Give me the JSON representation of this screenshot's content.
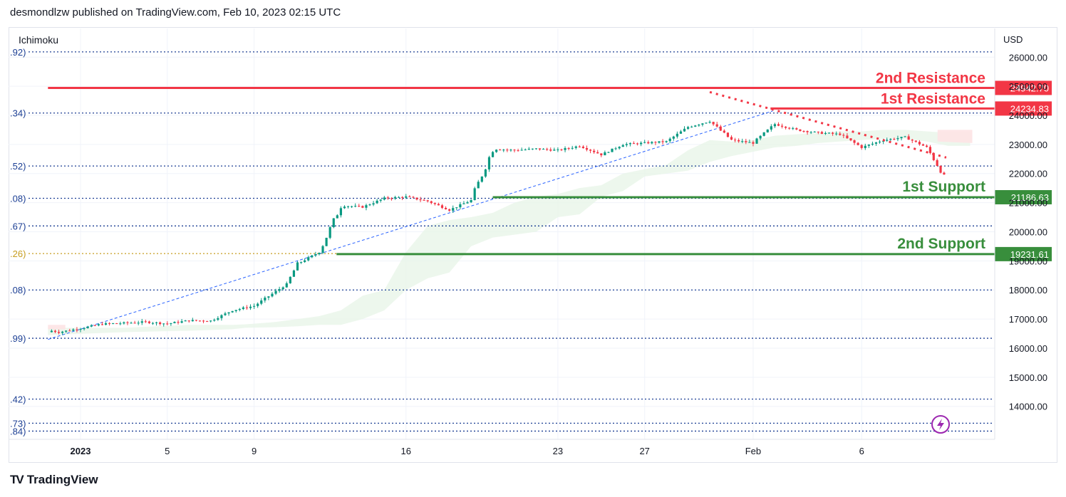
{
  "header": {
    "published_line": "desmondlzw published on TradingView.com, Feb 10, 2023 02:15 UTC"
  },
  "footer": {
    "brand": "TradingView",
    "logo_mark": "TV"
  },
  "chart_data": {
    "type": "candlestick",
    "indicator_label": "Ichimoku",
    "currency": "USD",
    "y_ticks": [
      26000,
      25000,
      24000,
      23000,
      22000,
      21000,
      20000,
      19000,
      18000,
      17000,
      16000,
      15000,
      14000
    ],
    "ylim": [
      12900,
      26800
    ],
    "grid": true,
    "x_ticks": [
      {
        "label": "2023",
        "day": 1,
        "bold": true
      },
      {
        "label": "5",
        "day": 5
      },
      {
        "label": "9",
        "day": 9
      },
      {
        "label": "16",
        "day": 16
      },
      {
        "label": "23",
        "day": 23
      },
      {
        "label": "27",
        "day": 27
      },
      {
        "label": "Feb",
        "day": 32
      },
      {
        "label": "6",
        "day": 37
      }
    ],
    "fib_levels": [
      {
        "label": ".92)",
        "value": 26180,
        "color": "#1c3f94"
      },
      {
        "label": ".34)",
        "value": 24080,
        "color": "#1c3f94"
      },
      {
        "label": ".52)",
        "value": 22260,
        "color": "#1c3f94"
      },
      {
        "label": ".08)",
        "value": 21150,
        "color": "#1c3f94"
      },
      {
        "label": ".67)",
        "value": 20200,
        "color": "#1c3f94"
      },
      {
        "label": ".26)",
        "value": 19250,
        "color": "#c79d1f"
      },
      {
        "label": ".08)",
        "value": 18000,
        "color": "#1c3f94"
      },
      {
        "label": ".99)",
        "value": 16340,
        "color": "#1c3f94"
      },
      {
        "label": ".42)",
        "value": 14250,
        "color": "#1c3f94"
      },
      {
        "label": ".73)",
        "value": 13420,
        "color": "#1c3f94"
      },
      {
        "label": ".84)",
        "value": 13150,
        "color": "#1c3f94"
      }
    ],
    "resistance_lines": [
      {
        "name": "2nd Resistance",
        "value": 24942.7,
        "label": "24942.70",
        "color": "#f23645",
        "from_day": -0.5
      },
      {
        "name": "1st Resistance",
        "value": 24234.83,
        "label": "24234.83",
        "color": "#f23645",
        "from_day": 32.8
      }
    ],
    "support_lines": [
      {
        "name": "1st Support",
        "value": 21186.63,
        "label": "21186.63",
        "color": "#388e3c",
        "from_day": 20.0
      },
      {
        "name": "2nd Support",
        "value": 19231.61,
        "label": "19231.61",
        "color": "#388e3c",
        "from_day": 12.8
      }
    ],
    "trendline": {
      "color": "#f23645",
      "points": [
        [
          30.0,
          24800
        ],
        [
          40.9,
          22550
        ]
      ]
    },
    "fib_trend": {
      "color": "#2962ff",
      "points": [
        [
          -0.5,
          16300
        ],
        [
          32.9,
          24150
        ]
      ]
    },
    "up_color": "#089981",
    "down_color": "#f23645",
    "candles_daily": [
      {
        "day": -0.5,
        "o": 16550,
        "c": 16620
      },
      {
        "day": 0.0,
        "o": 16620,
        "c": 16550
      },
      {
        "day": 1.0,
        "o": 16550,
        "c": 16680
      },
      {
        "day": 2.0,
        "o": 16680,
        "c": 16830
      },
      {
        "day": 3.0,
        "o": 16830,
        "c": 16860
      },
      {
        "day": 4.0,
        "o": 16860,
        "c": 16900
      },
      {
        "day": 5.0,
        "o": 16900,
        "c": 16840
      },
      {
        "day": 6.0,
        "o": 16840,
        "c": 16950
      },
      {
        "day": 7.0,
        "o": 16950,
        "c": 16940
      },
      {
        "day": 8.0,
        "o": 16940,
        "c": 17300
      },
      {
        "day": 9.0,
        "o": 17300,
        "c": 17450
      },
      {
        "day": 10.0,
        "o": 17450,
        "c": 17950
      },
      {
        "day": 10.5,
        "o": 17950,
        "c": 18200
      },
      {
        "day": 11.0,
        "o": 18200,
        "c": 18900
      },
      {
        "day": 12.0,
        "o": 18900,
        "c": 19300
      },
      {
        "day": 13.0,
        "o": 19300,
        "c": 20900
      },
      {
        "day": 14.0,
        "o": 20900,
        "c": 20850
      },
      {
        "day": 15.0,
        "o": 20850,
        "c": 21150
      },
      {
        "day": 16.0,
        "o": 21150,
        "c": 21200
      },
      {
        "day": 17.0,
        "o": 21200,
        "c": 21050
      },
      {
        "day": 18.0,
        "o": 21050,
        "c": 20750
      },
      {
        "day": 19.0,
        "o": 20750,
        "c": 21080
      },
      {
        "day": 20.0,
        "o": 21080,
        "c": 22850
      },
      {
        "day": 21.0,
        "o": 22850,
        "c": 22800
      },
      {
        "day": 22.0,
        "o": 22800,
        "c": 22850
      },
      {
        "day": 23.0,
        "o": 22850,
        "c": 22800
      },
      {
        "day": 24.0,
        "o": 22800,
        "c": 22950
      },
      {
        "day": 25.0,
        "o": 22950,
        "c": 22650
      },
      {
        "day": 26.0,
        "o": 22650,
        "c": 23000
      },
      {
        "day": 27.0,
        "o": 23000,
        "c": 23050
      },
      {
        "day": 28.0,
        "o": 23050,
        "c": 23100
      },
      {
        "day": 29.0,
        "o": 23100,
        "c": 23600
      },
      {
        "day": 30.0,
        "o": 23600,
        "c": 23800
      },
      {
        "day": 31.0,
        "o": 23800,
        "c": 23150
      },
      {
        "day": 32.0,
        "o": 23150,
        "c": 23050
      },
      {
        "day": 33.0,
        "o": 23050,
        "c": 23700
      },
      {
        "day": 34.0,
        "o": 23700,
        "c": 23500
      },
      {
        "day": 35.0,
        "o": 23500,
        "c": 23400
      },
      {
        "day": 36.0,
        "o": 23400,
        "c": 23350
      },
      {
        "day": 37.0,
        "o": 23350,
        "c": 22900
      },
      {
        "day": 38.0,
        "o": 22900,
        "c": 23150
      },
      {
        "day": 39.0,
        "o": 23150,
        "c": 23250
      },
      {
        "day": 40.0,
        "o": 23250,
        "c": 22900
      },
      {
        "day": 40.8,
        "o": 22900,
        "c": 21900
      }
    ],
    "cloud_upper": [
      [
        -0.5,
        16700
      ],
      [
        3,
        16700
      ],
      [
        6,
        16800
      ],
      [
        8,
        16800
      ],
      [
        8.6,
        16820
      ],
      [
        10,
        16900
      ],
      [
        11,
        17000
      ],
      [
        12,
        17100
      ],
      [
        13,
        17300
      ],
      [
        14,
        17800
      ],
      [
        15,
        18000
      ],
      [
        16,
        19300
      ],
      [
        17,
        20200
      ],
      [
        18,
        20400
      ],
      [
        19,
        20500
      ],
      [
        20,
        20650
      ],
      [
        21,
        21000
      ],
      [
        22,
        21200
      ],
      [
        23,
        21300
      ],
      [
        24,
        21500
      ],
      [
        25,
        21600
      ],
      [
        26,
        22000
      ],
      [
        27,
        22150
      ],
      [
        28,
        22300
      ],
      [
        29,
        22800
      ],
      [
        30,
        23150
      ],
      [
        31,
        23100
      ],
      [
        32,
        23150
      ],
      [
        33,
        23300
      ],
      [
        34,
        23350
      ],
      [
        35,
        23400
      ],
      [
        36,
        23450
      ],
      [
        37,
        23450
      ],
      [
        38,
        23500
      ],
      [
        39,
        23500
      ],
      [
        40,
        23450
      ],
      [
        41,
        23400
      ],
      [
        42,
        23400
      ]
    ],
    "cloud_lower": [
      [
        -0.5,
        16450
      ],
      [
        3,
        16550
      ],
      [
        6,
        16600
      ],
      [
        8,
        16650
      ],
      [
        8.6,
        16700
      ],
      [
        10,
        16720
      ],
      [
        11,
        16750
      ],
      [
        12,
        16800
      ],
      [
        13,
        16800
      ],
      [
        14,
        17000
      ],
      [
        15,
        17300
      ],
      [
        16,
        18000
      ],
      [
        17,
        18400
      ],
      [
        18,
        18600
      ],
      [
        19,
        19500
      ],
      [
        20,
        19800
      ],
      [
        21,
        19900
      ],
      [
        22,
        20000
      ],
      [
        23,
        20500
      ],
      [
        24,
        20600
      ],
      [
        25,
        21200
      ],
      [
        26,
        21400
      ],
      [
        27,
        21900
      ],
      [
        28,
        22000
      ],
      [
        29,
        22100
      ],
      [
        30,
        22400
      ],
      [
        31,
        22600
      ],
      [
        32,
        22750
      ],
      [
        33,
        22900
      ],
      [
        34,
        22950
      ],
      [
        35,
        23050
      ],
      [
        36,
        23100
      ],
      [
        37,
        23150
      ],
      [
        38,
        23200
      ],
      [
        39,
        23200
      ],
      [
        40,
        23100
      ],
      [
        41,
        22950
      ],
      [
        42,
        22950
      ]
    ]
  }
}
